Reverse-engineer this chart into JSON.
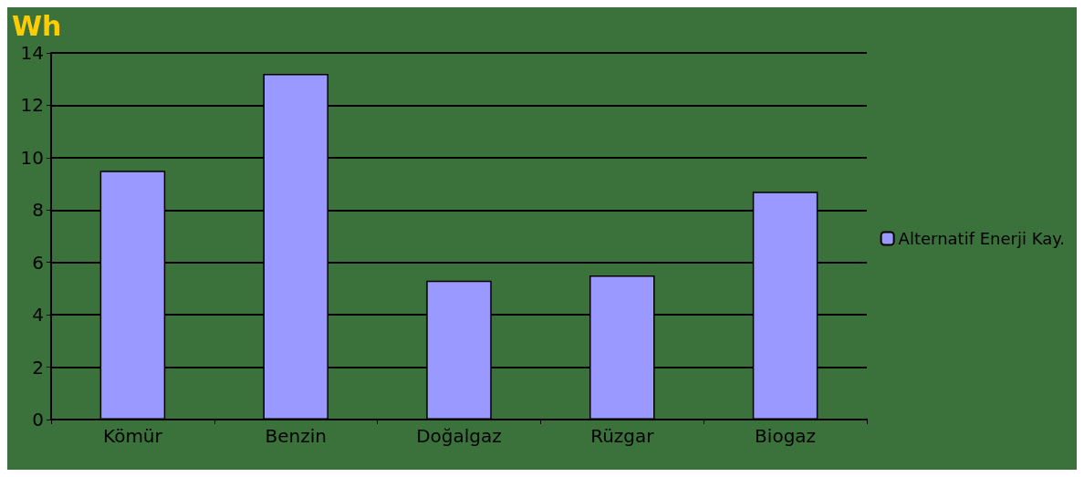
{
  "chart_data": {
    "type": "bar",
    "title": "Wh",
    "categories": [
      "Kömür",
      "Benzin",
      "Doğalgaz",
      "Rüzgar",
      "Biogaz"
    ],
    "series": [
      {
        "name": "Alternatif Enerji Kay.",
        "color": "#9999ff",
        "values": [
          9.5,
          13.2,
          5.3,
          5.5,
          8.7
        ]
      }
    ],
    "ylim": [
      0,
      14
    ],
    "yticks": [
      0,
      2,
      4,
      6,
      8,
      10,
      12,
      14
    ],
    "grid": "y",
    "legend": "right"
  }
}
